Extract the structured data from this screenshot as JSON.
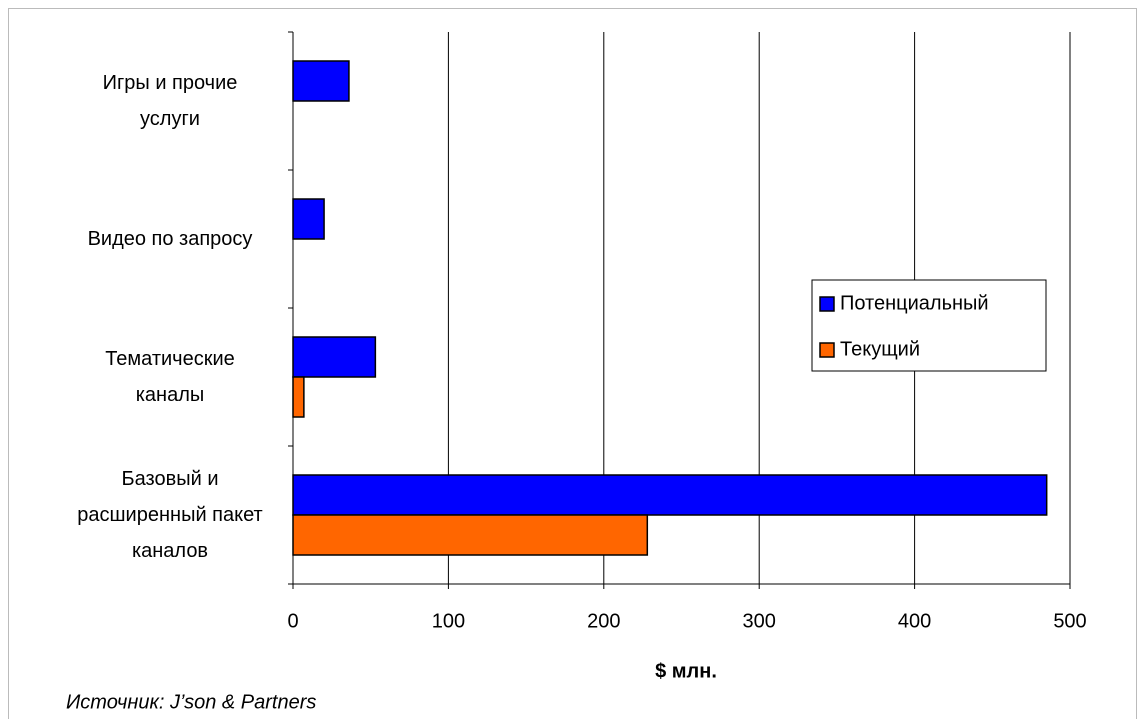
{
  "chart_data": {
    "type": "hbar",
    "categories": [
      "Игры и прочие\nуслуги",
      "Видео по запросу",
      "Тематические\nканалы",
      "Базовый и\nрасширенный пакет\nканалов"
    ],
    "series": [
      {
        "name": "Потенциальный",
        "color": "#0000ff",
        "values": [
          36,
          20,
          53,
          485
        ]
      },
      {
        "name": "Текущий",
        "color": "#ff6600",
        "values": [
          null,
          null,
          7,
          228
        ]
      }
    ],
    "xlim": [
      0,
      500
    ],
    "xticks": [
      0,
      100,
      200,
      300,
      400,
      500
    ],
    "grid": true,
    "xlabel": "$ млн.",
    "source": "Источник: J’son & Partners"
  }
}
